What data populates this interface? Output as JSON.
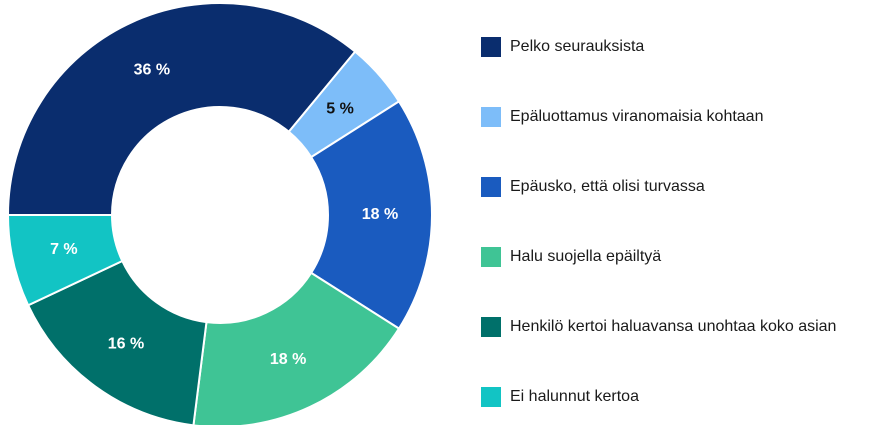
{
  "chart_data": {
    "type": "donut",
    "categories": [
      "Pelko seurauksista",
      "Epäluottamus viranomaisia kohtaan",
      "Epäusko, että olisi turvassa",
      "Halu suojella epäiltyä",
      "Henkilö kertoi haluavansa unohtaa koko asian",
      "Ei halunnut kertoa"
    ],
    "values": [
      36,
      5,
      18,
      18,
      16,
      7
    ],
    "value_labels": [
      "36 %",
      "5 %",
      "18 %",
      "18 %",
      "16 %",
      "7 %"
    ],
    "colors": [
      "#0a2d6e",
      "#7dbdf9",
      "#1a5bbf",
      "#3fc495",
      "#00706a",
      "#12c4c4"
    ],
    "legend": "right"
  }
}
